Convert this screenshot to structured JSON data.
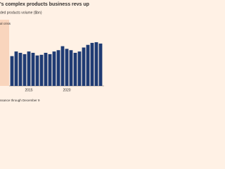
{
  "chart_data": {
    "type": "bar",
    "title": "'s complex products business revs up",
    "subtitle": "ded products volume ($bn)",
    "annotation": "al crisis",
    "source": "ssance through December 9",
    "categories": [
      null,
      null,
      null,
      null,
      "2015",
      null,
      null,
      null,
      null,
      null,
      null,
      null,
      null,
      "2020",
      null,
      null,
      null,
      null,
      null,
      null,
      null,
      null
    ],
    "values": [
      45,
      52,
      50,
      48,
      52,
      50,
      46,
      47,
      50,
      48,
      52,
      54,
      60,
      56,
      54,
      50,
      52,
      58,
      62,
      65,
      66,
      64
    ],
    "color": "#1f3b73",
    "ylim": [
      0,
      100
    ]
  }
}
